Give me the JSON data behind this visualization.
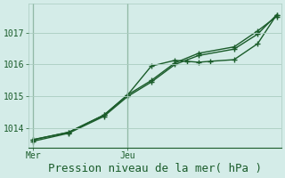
{
  "xlabel": "Pression niveau de la mer( hPa )",
  "bg_color": "#d4ece8",
  "line_color": "#1a5c2a",
  "grid_color": "#aaccc0",
  "ylim": [
    1013.4,
    1017.9
  ],
  "ytick_vals": [
    1014,
    1015,
    1016,
    1017
  ],
  "xtick_labels": [
    "Mer",
    "Jeu"
  ],
  "xtick_pos": [
    0,
    4
  ],
  "xlim": [
    -0.2,
    10.5
  ],
  "vline_x": 0,
  "vline2_x": 4,
  "line1_x": [
    0,
    1.5,
    3,
    4,
    5,
    6,
    6.5,
    7,
    7.5,
    8.5,
    9.5,
    10.3
  ],
  "line1_y": [
    1013.65,
    1013.88,
    1014.42,
    1015.05,
    1015.95,
    1016.13,
    1016.1,
    1016.07,
    1016.1,
    1016.15,
    1016.65,
    1017.55
  ],
  "line2_x": [
    0,
    1.5,
    3,
    4,
    5,
    6,
    7,
    8.5,
    9.5,
    10.3
  ],
  "line2_y": [
    1013.65,
    1013.88,
    1014.42,
    1015.05,
    1015.5,
    1016.05,
    1016.35,
    1016.55,
    1017.05,
    1017.5
  ],
  "line3_x": [
    0,
    1.5,
    3,
    4,
    5,
    6,
    7,
    8.5,
    9.5,
    10.3
  ],
  "line3_y": [
    1013.6,
    1013.85,
    1014.38,
    1015.0,
    1015.45,
    1016.0,
    1016.28,
    1016.48,
    1016.95,
    1017.55
  ],
  "xlabel_fontsize": 9,
  "ytick_fontsize": 7,
  "xtick_fontsize": 7
}
